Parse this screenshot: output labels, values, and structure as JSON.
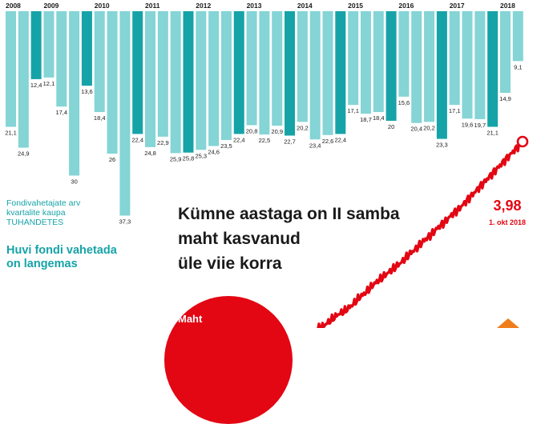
{
  "chart_data": {
    "type": "bar",
    "legend": {
      "line1": "Fondivahetajate arv",
      "line2": "kvartalite kaupa",
      "units": "TUHANDETES"
    },
    "subheadline": [
      "Huvi fondi vahetada",
      "on langemas"
    ],
    "headline": [
      "Kümne aastaga on II samba",
      "maht kasvanud",
      "üle viie korra"
    ],
    "years": [
      "2008",
      "2009",
      "2010",
      "2011",
      "2012",
      "2013",
      "2014",
      "2015",
      "2016",
      "2017",
      "2018"
    ],
    "bars_per_year": [
      3,
      4,
      4,
      4,
      4,
      4,
      4,
      4,
      4,
      4,
      3
    ],
    "values": [
      21.1,
      24.9,
      12.4,
      12.1,
      17.4,
      30,
      13.6,
      18.4,
      26,
      37.3,
      22.4,
      24.8,
      22.9,
      25.9,
      25.8,
      25.3,
      24.6,
      23.5,
      22.4,
      20.8,
      22.5,
      20.9,
      22.7,
      20.2,
      23.4,
      22.6,
      22.4,
      17.1,
      18.7,
      18.4,
      20,
      15.6,
      20.4,
      20.2,
      23.3,
      17.1,
      19.6,
      19.7,
      21.1,
      14.9,
      9.1
    ],
    "value_labels": [
      "21,1",
      "24,9",
      "12,4",
      "12,1",
      "17,4",
      "30",
      "13,6",
      "18,4",
      "26",
      "37,3",
      "22,4",
      "24,8",
      "22,9",
      "25,9",
      "25,8",
      "25,3",
      "24,6",
      "23,5",
      "22,4",
      "20,8",
      "22,5",
      "20,9",
      "22,7",
      "20,2",
      "23,4",
      "22,6",
      "22,4",
      "17,1",
      "18,7",
      "18,4",
      "20",
      "15,6",
      "20,4",
      "20,2",
      "23,3",
      "17,1",
      "19,6",
      "19,7",
      "21,1",
      "14,9",
      "9,1"
    ],
    "bar_color_dark": "#16a3a8",
    "bar_color_light": "#85d4d6",
    "line": {
      "color": "#e30613",
      "end_value_label": "3,98",
      "end_date_label": "1. okt 2018",
      "shape": [
        0,
        0.02,
        0.05,
        0.08,
        0.1,
        0.13,
        0.17,
        0.2,
        0.24,
        0.27,
        0.3,
        0.33,
        0.36,
        0.4,
        0.43,
        0.47,
        0.5,
        0.54,
        0.57,
        0.61,
        0.64,
        0.68,
        0.72,
        0.76,
        0.8,
        0.84,
        0.88,
        0.92,
        0.96,
        1.0
      ]
    }
  },
  "bottom": {
    "circle_label": "Maht",
    "circle_color": "#e30613",
    "accent_color": "#ef7d1a"
  }
}
